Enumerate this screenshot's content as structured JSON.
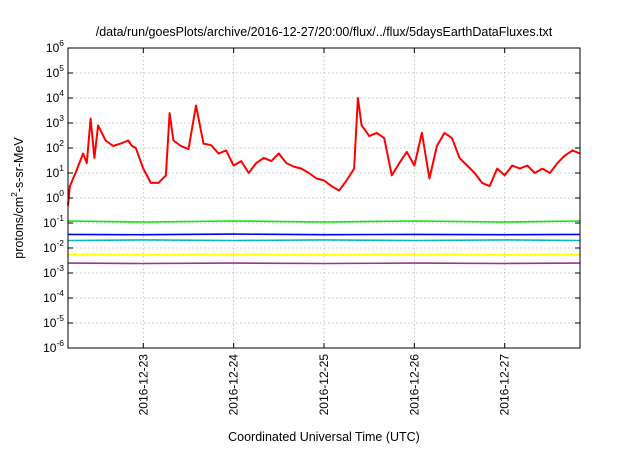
{
  "chart_data": {
    "type": "line",
    "title": "/data/run/goesPlots/archive/2016-12-27/20:00/flux/../flux/5daysEarthDataFluxes.txt",
    "xlabel": "Coordinated Universal Time (UTC)",
    "ylabel": {
      "prefix": "protons/cm",
      "superscript": "2",
      "suffix": "-s-sr-MeV"
    },
    "scale": {
      "y": "log"
    },
    "grid": true,
    "xlim": [
      "2016-12-22T04:00",
      "2016-12-27T20:00"
    ],
    "ylim": [
      1e-06,
      1000000.0
    ],
    "x_ticks": [
      {
        "x": "2016-12-23T00:00",
        "label": "2016-12-23"
      },
      {
        "x": "2016-12-24T00:00",
        "label": "2016-12-24"
      },
      {
        "x": "2016-12-25T00:00",
        "label": "2016-12-25"
      },
      {
        "x": "2016-12-26T00:00",
        "label": "2016-12-26"
      },
      {
        "x": "2016-12-27T00:00",
        "label": "2016-12-27"
      }
    ],
    "y_ticks": [
      {
        "value": 1e-06,
        "base": "10",
        "exp": "-6"
      },
      {
        "value": 1e-05,
        "base": "10",
        "exp": "-5"
      },
      {
        "value": 0.0001,
        "base": "10",
        "exp": "-4"
      },
      {
        "value": 0.001,
        "base": "10",
        "exp": "-3"
      },
      {
        "value": 0.01,
        "base": "10",
        "exp": "-2"
      },
      {
        "value": 0.1,
        "base": "10",
        "exp": "-1"
      },
      {
        "value": 1,
        "base": "10",
        "exp": "0"
      },
      {
        "value": 10,
        "base": "10",
        "exp": "1"
      },
      {
        "value": 100,
        "base": "10",
        "exp": "2"
      },
      {
        "value": 1000,
        "base": "10",
        "exp": "3"
      },
      {
        "value": 10000,
        "base": "10",
        "exp": "4"
      },
      {
        "value": 100000,
        "base": "10",
        "exp": "5"
      },
      {
        "value": 1000000,
        "base": "10",
        "exp": "6"
      }
    ],
    "series": [
      {
        "color": "#ff0000",
        "x": [
          "2016-12-22T04:00",
          "2016-12-22T04:30",
          "2016-12-22T06:00",
          "2016-12-22T08:00",
          "2016-12-22T09:00",
          "2016-12-22T10:00",
          "2016-12-22T11:00",
          "2016-12-22T12:00",
          "2016-12-22T14:00",
          "2016-12-22T16:00",
          "2016-12-22T18:00",
          "2016-12-22T20:00",
          "2016-12-22T21:00",
          "2016-12-22T22:00",
          "2016-12-23T00:00",
          "2016-12-23T02:00",
          "2016-12-23T04:00",
          "2016-12-23T06:00",
          "2016-12-23T07:00",
          "2016-12-23T08:00",
          "2016-12-23T10:00",
          "2016-12-23T12:00",
          "2016-12-23T14:00",
          "2016-12-23T16:00",
          "2016-12-23T18:00",
          "2016-12-23T20:00",
          "2016-12-23T22:00",
          "2016-12-24T00:00",
          "2016-12-24T02:00",
          "2016-12-24T04:00",
          "2016-12-24T06:00",
          "2016-12-24T08:00",
          "2016-12-24T10:00",
          "2016-12-24T12:00",
          "2016-12-24T14:00",
          "2016-12-24T16:00",
          "2016-12-24T18:00",
          "2016-12-24T20:00",
          "2016-12-24T22:00",
          "2016-12-25T00:00",
          "2016-12-25T02:00",
          "2016-12-25T04:00",
          "2016-12-25T06:00",
          "2016-12-25T08:00",
          "2016-12-25T09:00",
          "2016-12-25T10:00",
          "2016-12-25T11:00",
          "2016-12-25T12:00",
          "2016-12-25T14:00",
          "2016-12-25T16:00",
          "2016-12-25T18:00",
          "2016-12-25T20:00",
          "2016-12-25T22:00",
          "2016-12-26T00:00",
          "2016-12-26T02:00",
          "2016-12-26T04:00",
          "2016-12-26T06:00",
          "2016-12-26T08:00",
          "2016-12-26T10:00",
          "2016-12-26T12:00",
          "2016-12-26T14:00",
          "2016-12-26T16:00",
          "2016-12-26T18:00",
          "2016-12-26T20:00",
          "2016-12-26T22:00",
          "2016-12-27T00:00",
          "2016-12-27T02:00",
          "2016-12-27T04:00",
          "2016-12-27T06:00",
          "2016-12-27T08:00",
          "2016-12-27T10:00",
          "2016-12-27T12:00",
          "2016-12-27T14:00",
          "2016-12-27T16:00",
          "2016-12-27T18:00",
          "2016-12-27T20:00"
        ],
        "y": [
          0.5,
          3,
          10,
          60,
          25,
          1500,
          40,
          800,
          200,
          120,
          150,
          200,
          120,
          100,
          15,
          4,
          4,
          8,
          2500,
          200,
          120,
          90,
          5000,
          150,
          130,
          60,
          80,
          20,
          30,
          10,
          25,
          40,
          30,
          60,
          25,
          18,
          15,
          10,
          6,
          5,
          3,
          2,
          5,
          15,
          10000,
          800,
          500,
          300,
          400,
          250,
          8,
          25,
          70,
          20,
          400,
          6,
          120,
          400,
          250,
          40,
          20,
          10,
          4,
          3,
          15,
          8,
          20,
          15,
          20,
          10,
          15,
          10,
          25,
          50,
          80,
          60
        ]
      },
      {
        "color": "#00ee00",
        "x": [
          "2016-12-22T04:00",
          "2016-12-23T00:00",
          "2016-12-24T00:00",
          "2016-12-25T00:00",
          "2016-12-26T00:00",
          "2016-12-27T00:00",
          "2016-12-27T20:00"
        ],
        "y": [
          0.12,
          0.11,
          0.12,
          0.11,
          0.12,
          0.11,
          0.12
        ]
      },
      {
        "color": "#00bbbb",
        "x": [
          "2016-12-22T04:00",
          "2016-12-23T00:00",
          "2016-12-24T00:00",
          "2016-12-25T00:00",
          "2016-12-26T00:00",
          "2016-12-27T00:00",
          "2016-12-27T20:00"
        ],
        "y": [
          0.02,
          0.021,
          0.02,
          0.021,
          0.02,
          0.021,
          0.02
        ]
      },
      {
        "color": "#0000ff",
        "x": [
          "2016-12-22T04:00",
          "2016-12-23T00:00",
          "2016-12-24T00:00",
          "2016-12-25T00:00",
          "2016-12-26T00:00",
          "2016-12-27T00:00",
          "2016-12-27T20:00"
        ],
        "y": [
          0.035,
          0.034,
          0.036,
          0.034,
          0.035,
          0.034,
          0.035
        ]
      },
      {
        "color": "#ffff00",
        "x": [
          "2016-12-22T04:00",
          "2016-12-23T00:00",
          "2016-12-24T00:00",
          "2016-12-25T00:00",
          "2016-12-26T00:00",
          "2016-12-27T00:00",
          "2016-12-27T20:00"
        ],
        "y": [
          0.0055,
          0.0054,
          0.0055,
          0.0054,
          0.0055,
          0.0054,
          0.0055
        ]
      },
      {
        "color": "#993399",
        "x": [
          "2016-12-22T04:00",
          "2016-12-23T00:00",
          "2016-12-24T00:00",
          "2016-12-25T00:00",
          "2016-12-26T00:00",
          "2016-12-27T00:00",
          "2016-12-27T20:00"
        ],
        "y": [
          0.0025,
          0.0024,
          0.0025,
          0.0024,
          0.0025,
          0.0024,
          0.0025
        ]
      }
    ]
  }
}
